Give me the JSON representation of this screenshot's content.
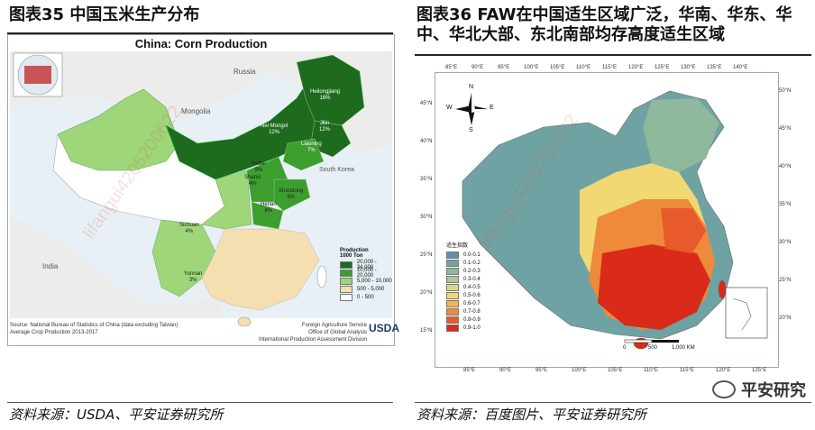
{
  "left": {
    "figure_title": "图表35 中国玉米生产分布",
    "chart_title": "China: Corn Production",
    "source_line": "资料来源：USDA、平安证券研究所",
    "labels": {
      "russia": "Russia",
      "mongolia": "Mongolia",
      "south_korea": "South Korea",
      "india": "India"
    },
    "provinces": [
      {
        "name": "Heilongjiang",
        "pct": "16%"
      },
      {
        "name": "Jilin",
        "pct": "12%"
      },
      {
        "name": "Nei Mongol",
        "pct": "12%"
      },
      {
        "name": "Liaoning",
        "pct": "7%"
      },
      {
        "name": "Hebei",
        "pct": "9%"
      },
      {
        "name": "Shanxi",
        "pct": "4%"
      },
      {
        "name": "Shandong",
        "pct": "9%"
      },
      {
        "name": "Henan",
        "pct": "8%"
      },
      {
        "name": "Sichuan",
        "pct": "4%"
      },
      {
        "name": "Yunnan",
        "pct": "3%"
      }
    ],
    "legend": {
      "title1": "Production",
      "title2": "1000 Ton",
      "items": [
        {
          "label": "20,000 - 34,000",
          "color": "#1e6b1e"
        },
        {
          "label": "10,000 - 20,000",
          "color": "#3c9e2c"
        },
        {
          "label": "5,000 - 10,000",
          "color": "#9fd67a"
        },
        {
          "label": "500 - 5,000",
          "color": "#f5deb0"
        },
        {
          "label": "0 - 500",
          "color": "#ffffff"
        }
      ]
    },
    "footnote1": "Source: National Bureau of Statistics of China (data excluding Taiwan)",
    "footnote2": "Average Crop Production 2013-2017",
    "agency1": "Foreign Agriculture Service",
    "agency2": "Office of Global Analysis",
    "agency3": "International Production Assessment Division",
    "logo": "USDA"
  },
  "right": {
    "figure_title": "图表36 FAW在中国适生区域广泛，华南、华东、华中、华北大部、东北南部均存高度适生区域",
    "source_line": "资料来源：百度图片、平安证券研究所",
    "top_axis": [
      "85°E",
      "90°E",
      "95°E",
      "100°E",
      "105°E",
      "110°E",
      "115°E",
      "120°E",
      "125°E",
      "130°E",
      "135°E",
      "140°E"
    ],
    "bottom_axis": [
      "85°E",
      "90°E",
      "95°E",
      "100°E",
      "105°E",
      "110°E",
      "115°E",
      "120°E",
      "125°E"
    ],
    "left_axis": [
      "45°N",
      "40°N",
      "35°N",
      "30°N",
      "25°N",
      "20°N",
      "15°N"
    ],
    "right_axis": [
      "50°N",
      "45°N",
      "40°N",
      "35°N",
      "30°N",
      "25°N",
      "20°N"
    ],
    "compass": {
      "n": "N",
      "s": "S",
      "e": "E",
      "w": "W"
    },
    "legend_title": "适生指数",
    "legend": [
      {
        "label": "0.0-0.1",
        "color": "#5b8fb0"
      },
      {
        "label": "0.1-0.2",
        "color": "#6fa3a3"
      },
      {
        "label": "0.2-0.3",
        "color": "#8fb89c"
      },
      {
        "label": "0.3-0.4",
        "color": "#aec79a"
      },
      {
        "label": "0.4-0.5",
        "color": "#d6d88c"
      },
      {
        "label": "0.5-0.6",
        "color": "#f2d873"
      },
      {
        "label": "0.6-0.7",
        "color": "#f3b452"
      },
      {
        "label": "0.7-0.8",
        "color": "#ee8a3a"
      },
      {
        "label": "0.8-0.9",
        "color": "#e85a2a"
      },
      {
        "label": "0.9-1.0",
        "color": "#d92a1a"
      }
    ],
    "scale": [
      "0",
      "500",
      "1,000 KM"
    ]
  },
  "wechat": "平安研究",
  "watermark": "lifangui4205200622"
}
